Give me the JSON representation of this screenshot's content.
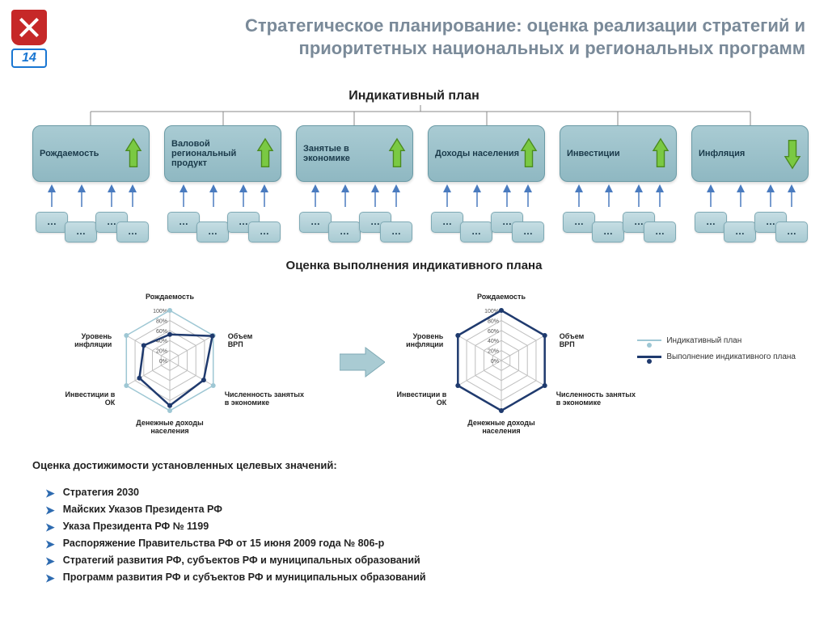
{
  "logo": {
    "num": "14"
  },
  "title": "Стратегическое планирование: оценка реализации стратегий и приоритетных национальных и региональных программ",
  "indicative_title": "Индикативный план",
  "boxes": [
    {
      "label": "Рождаемость",
      "direction": "up"
    },
    {
      "label": "Валовой региональный продукт",
      "direction": "up"
    },
    {
      "label": "Занятые в экономике",
      "direction": "up"
    },
    {
      "label": "Доходы населения",
      "direction": "up"
    },
    {
      "label": "Инвестиции",
      "direction": "up"
    },
    {
      "label": "Инфляция",
      "direction": "down"
    }
  ],
  "sub_label": "…",
  "radar_title": "Оценка выполнения индикативного плана",
  "radar": {
    "axes": [
      "Рождаемость",
      "Объем ВРП",
      "Численность занятых в экономике",
      "Денежные доходы населения",
      "Инвестиции в ОК",
      "Уровень инфляции"
    ],
    "ticks": [
      "0%",
      "20%",
      "40%",
      "60%",
      "80%",
      "100%"
    ],
    "rings": 5,
    "colors": {
      "grid": "#bfbfbf",
      "plan_line": "#9ec7d4",
      "plan_marker": "#9ec7d4",
      "exec_line": "#1f3a6e",
      "exec_marker": "#1f3a6e"
    },
    "left": {
      "plan": [
        100,
        100,
        100,
        100,
        100,
        100
      ],
      "exec": [
        52,
        98,
        78,
        90,
        70,
        60
      ]
    },
    "right": {
      "plan": [
        100,
        100,
        100,
        100,
        100,
        100
      ],
      "exec": [
        100,
        100,
        100,
        100,
        100,
        100
      ]
    }
  },
  "legend": {
    "plan": "Индикативный план",
    "exec": "Выполнение индикативного плана"
  },
  "assess_title": "Оценка достижимости установленных целевых значений:",
  "bullets": [
    "Стратегия 2030",
    "Майских Указов Президента РФ",
    "Указа Президента РФ № 1199",
    "Распоряжение Правительства РФ от 15 июня 2009 года № 806-р",
    "Стратегий развития РФ, субъектов РФ и муниципальных образований",
    "Программ развития РФ и субъектов РФ и муниципальных образований"
  ],
  "style": {
    "box_bg_top": "#a9cbd3",
    "box_bg_bottom": "#8fb8c2",
    "box_border": "#6a9aa5",
    "arrow_up_fill": "#7ac943",
    "arrow_up_stroke": "#4a8a1f",
    "arrow_down_fill": "#7ac943",
    "arrow_down_stroke": "#4a8a1f",
    "mini_arrow_fill": "#4a7bbf",
    "big_arrow_fill": "#a9cbd3",
    "title_color": "#7a8a99"
  }
}
